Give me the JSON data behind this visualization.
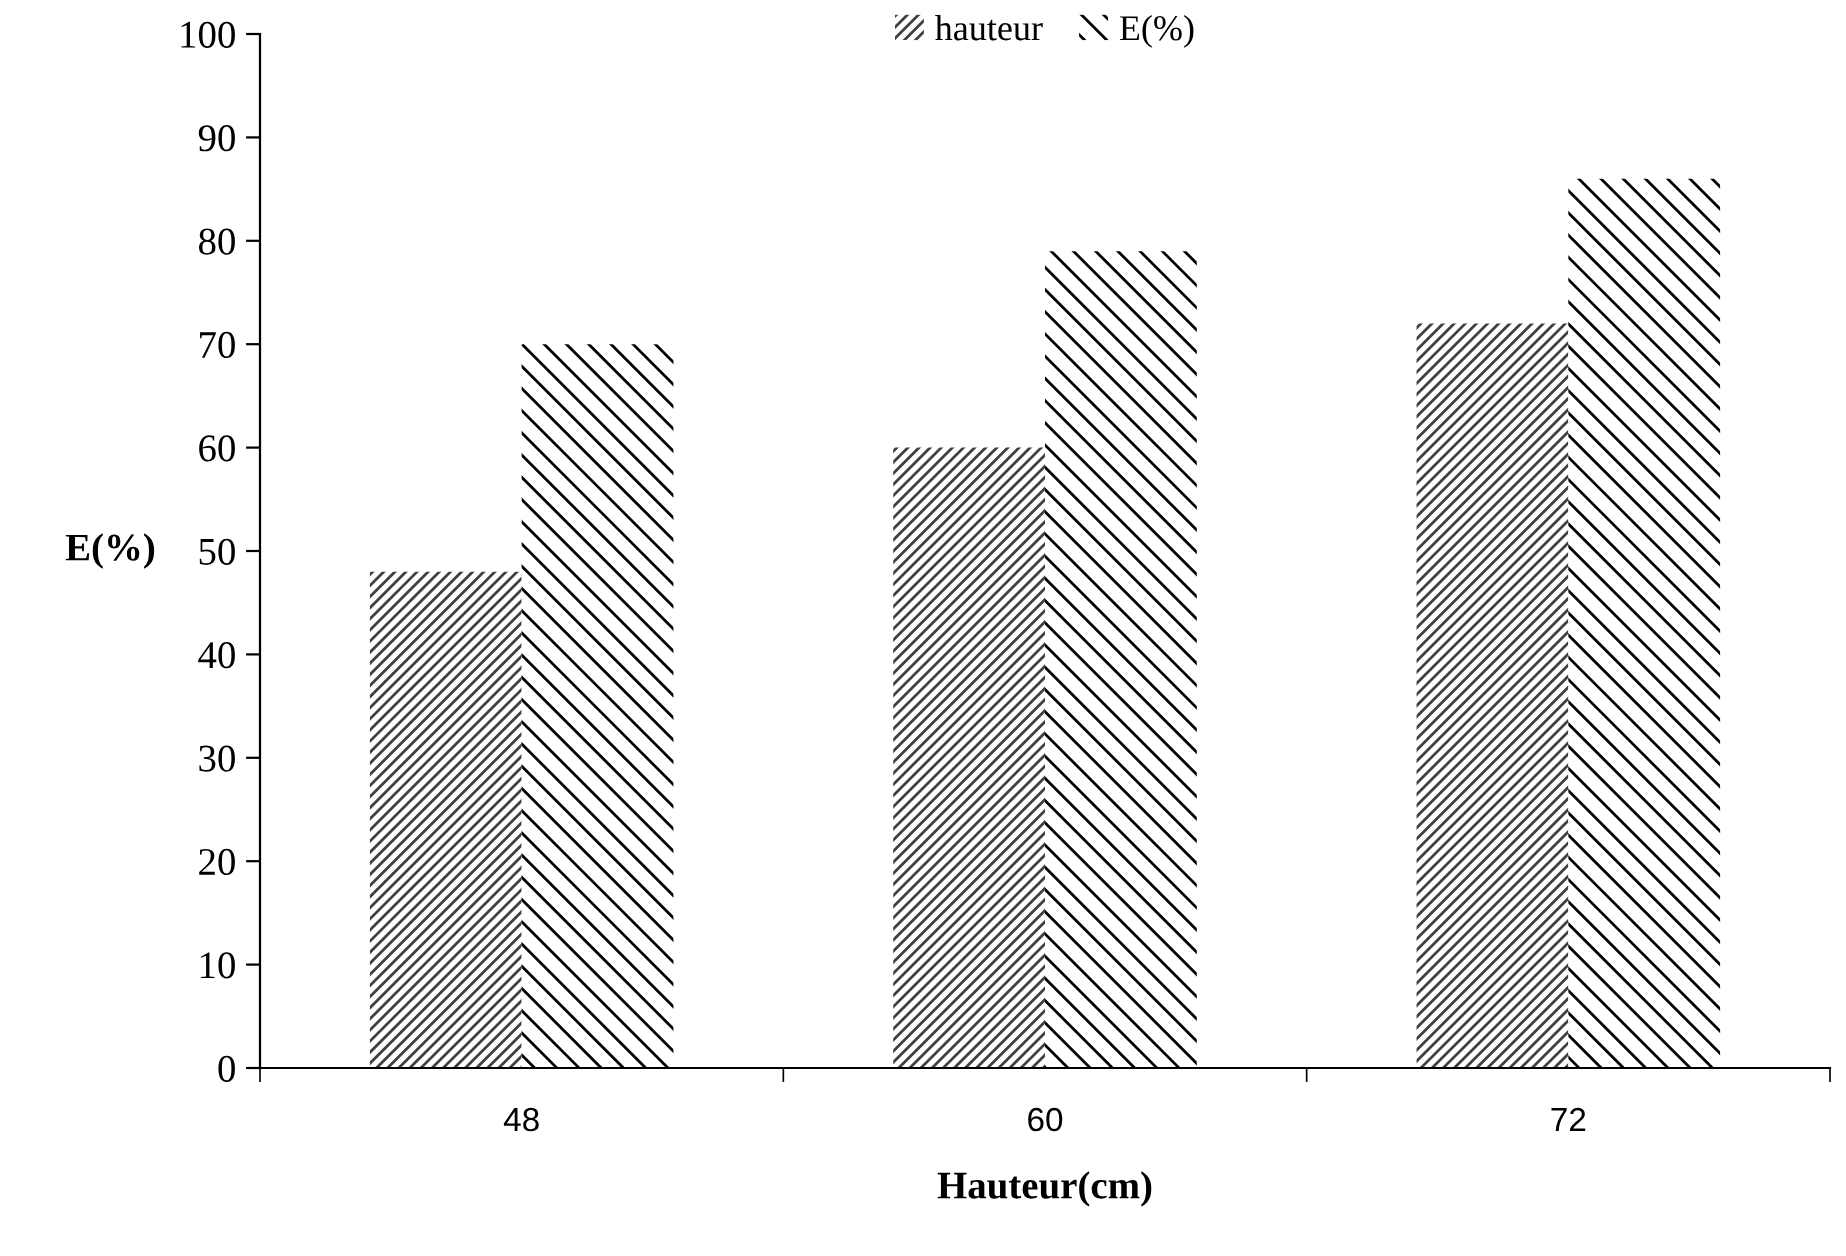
{
  "chart_data": {
    "type": "bar",
    "xlabel": "Hauteur(cm)",
    "ylabel": "E(%)",
    "categories": [
      "48",
      "60",
      "72"
    ],
    "series": [
      {
        "name": "hauteur",
        "color": "#404040",
        "values": [
          48,
          60,
          72
        ]
      },
      {
        "name": "E(%)",
        "color": "#000000",
        "values": [
          70,
          79,
          86
        ]
      }
    ],
    "ylim": [
      0,
      100
    ],
    "yticks": [
      0,
      10,
      20,
      30,
      40,
      50,
      60,
      70,
      80,
      90,
      100
    ],
    "grid": false,
    "legend": "top"
  }
}
